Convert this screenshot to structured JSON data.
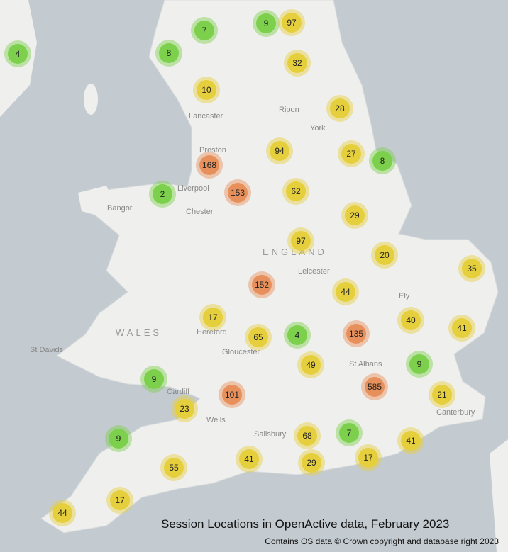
{
  "title": "Session Locations in OpenActive data, February 2023",
  "attribution": "Contains OS data © Crown copyright and database right 2023",
  "places": [
    "Lancaster",
    "Ripon",
    "York",
    "Preston",
    "Liverpool",
    "Bangor",
    "Chester",
    "ENGLAND",
    "Leicester",
    "Ely",
    "WALES",
    "Hereford",
    "St Davids",
    "Gloucester",
    "St Albans",
    "Cardiff",
    "Wells",
    "Salisbury",
    "Canterbury"
  ],
  "clusters": [
    {
      "count": 4,
      "color": "#7cd04c"
    },
    {
      "count": 7,
      "color": "#7cd04c"
    },
    {
      "count": 9,
      "color": "#7cd04c"
    },
    {
      "count": 97,
      "color": "#e6cf3c"
    },
    {
      "count": 8,
      "color": "#7cd04c"
    },
    {
      "count": 32,
      "color": "#e6cf3c"
    },
    {
      "count": 10,
      "color": "#e6cf3c"
    },
    {
      "count": 28,
      "color": "#e6cf3c"
    },
    {
      "count": 94,
      "color": "#e6cf3c"
    },
    {
      "count": 27,
      "color": "#e6cf3c"
    },
    {
      "count": 8,
      "color": "#7cd04c"
    },
    {
      "count": 168,
      "color": "#e8905c"
    },
    {
      "count": 2,
      "color": "#7cd04c"
    },
    {
      "count": 153,
      "color": "#e8905c"
    },
    {
      "count": 62,
      "color": "#e6cf3c"
    },
    {
      "count": 29,
      "color": "#e6cf3c"
    },
    {
      "count": 97,
      "color": "#e6cf3c"
    },
    {
      "count": 20,
      "color": "#e6cf3c"
    },
    {
      "count": 35,
      "color": "#e6cf3c"
    },
    {
      "count": 152,
      "color": "#e8905c"
    },
    {
      "count": 44,
      "color": "#e6cf3c"
    },
    {
      "count": 17,
      "color": "#e6cf3c"
    },
    {
      "count": 40,
      "color": "#e6cf3c"
    },
    {
      "count": 41,
      "color": "#e6cf3c"
    },
    {
      "count": 65,
      "color": "#e6cf3c"
    },
    {
      "count": 4,
      "color": "#7cd04c"
    },
    {
      "count": 135,
      "color": "#e8905c"
    },
    {
      "count": 49,
      "color": "#e6cf3c"
    },
    {
      "count": 9,
      "color": "#7cd04c"
    },
    {
      "count": 9,
      "color": "#7cd04c"
    },
    {
      "count": 585,
      "color": "#e8905c"
    },
    {
      "count": 101,
      "color": "#e8905c"
    },
    {
      "count": 21,
      "color": "#e6cf3c"
    },
    {
      "count": 23,
      "color": "#e6cf3c"
    },
    {
      "count": 9,
      "color": "#7cd04c"
    },
    {
      "count": 68,
      "color": "#e6cf3c"
    },
    {
      "count": 7,
      "color": "#7cd04c"
    },
    {
      "count": 41,
      "color": "#e6cf3c"
    },
    {
      "count": 41,
      "color": "#e6cf3c"
    },
    {
      "count": 29,
      "color": "#e6cf3c"
    },
    {
      "count": 17,
      "color": "#e6cf3c"
    },
    {
      "count": 55,
      "color": "#e6cf3c"
    },
    {
      "count": 17,
      "color": "#e6cf3c"
    },
    {
      "count": 44,
      "color": "#e6cf3c"
    }
  ]
}
